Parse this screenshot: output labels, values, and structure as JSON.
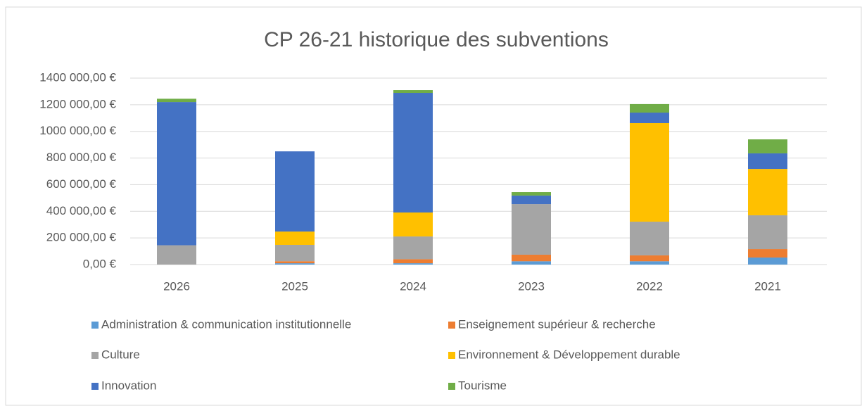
{
  "chart_data": {
    "type": "stacked_bar",
    "title": "CP 26-21 historique des  subventions",
    "categories": [
      "2026",
      "2025",
      "2024",
      "2023",
      "2022",
      "2021"
    ],
    "series": [
      {
        "name": "Administration & communication institutionnelle",
        "color": "#5b9bd5",
        "values": [
          0,
          10000,
          10000,
          25000,
          25000,
          53000
        ]
      },
      {
        "name": "Enseignement supérieur & recherche",
        "color": "#ed7d31",
        "values": [
          0,
          15000,
          30000,
          49000,
          44000,
          63000
        ]
      },
      {
        "name": "Culture",
        "color": "#a5a5a5",
        "values": [
          145000,
          123000,
          171000,
          380000,
          253000,
          254000
        ]
      },
      {
        "name": "Environnement & Développement durable",
        "color": "#ffc000",
        "values": [
          0,
          100000,
          180000,
          0,
          740000,
          348000
        ]
      },
      {
        "name": "Innovation",
        "color": "#4472c4",
        "values": [
          1075000,
          602000,
          898000,
          64000,
          79000,
          117000
        ]
      },
      {
        "name": "Tourisme",
        "color": "#70ad47",
        "values": [
          25000,
          0,
          21000,
          26000,
          64000,
          105000
        ]
      }
    ],
    "ylim": [
      0,
      1400000
    ],
    "yticks": [
      {
        "value": 0,
        "label": "0,00 €"
      },
      {
        "value": 200000,
        "label": "200 000,00 €"
      },
      {
        "value": 400000,
        "label": "400 000,00 €"
      },
      {
        "value": 600000,
        "label": "600 000,00 €"
      },
      {
        "value": 800000,
        "label": "800 000,00 €"
      },
      {
        "value": 1000000,
        "label": "1000 000,00 €"
      },
      {
        "value": 1200000,
        "label": "1200 000,00 €"
      },
      {
        "value": 1400000,
        "label": "1400 000,00 €"
      }
    ],
    "grid": true,
    "legend": "bottom"
  }
}
